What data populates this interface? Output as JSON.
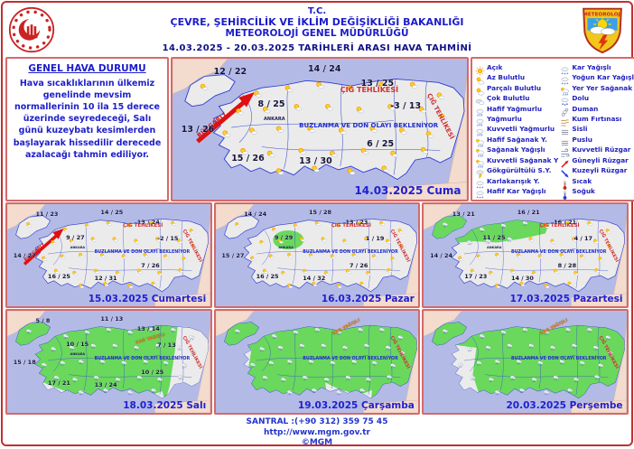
{
  "header": {
    "line1": "T.C.",
    "line2": "ÇEVRE, ŞEHİRCİLİK VE İKLİM DEĞİŞİKLİĞİ BAKANLIĞI",
    "line3": "METEOROLOJİ GENEL MÜDÜRLÜĞÜ",
    "date_range": "14.03.2025 - 20.03.2025   TARİHLERİ ARASI HAVA TAHMİNİ",
    "logo_label": "METEOROLOJİ"
  },
  "overview": {
    "title": "GENEL HAVA DURUMU",
    "text": "Hava sıcaklıklarının  ülkemiz genelinde mevsim normallerinin 10 ila 15 derece üzerinde seyredeceği, Salı günü kuzeybatı kesimlerden başlayarak hissedilir derecede azalacağı tahmin ediliyor."
  },
  "warnings": {
    "frost": "BUZLANMA VE DON OLAYI BEKLENİYOR",
    "avalanche": "ÇIĞ TEHLİKESİ",
    "wind": "RÜZGARLI",
    "snow": "KAR YAĞIŞLI"
  },
  "legend": {
    "col1": [
      {
        "icon": "sun",
        "label": "Açık"
      },
      {
        "icon": "sun-small-cloud",
        "label": "Az Bulutlu"
      },
      {
        "icon": "sun-cloud",
        "label": "Parçalı Bulutlu"
      },
      {
        "icon": "clouds",
        "label": "Çok Bulutlu"
      },
      {
        "icon": "light-rain",
        "label": "Hafif Yağmurlu"
      },
      {
        "icon": "rain",
        "label": "Yağmurlu"
      },
      {
        "icon": "heavy-rain",
        "label": "Kuvvetli Yağmurlu"
      },
      {
        "icon": "light-shower",
        "label": "Hafif Sağanak Y."
      },
      {
        "icon": "shower",
        "label": "Sağanak Yağışlı"
      },
      {
        "icon": "heavy-shower",
        "label": "Kuvvetli Sağanak Y"
      },
      {
        "icon": "thunderstorm",
        "label": "Gökgürültülü S.Y."
      },
      {
        "icon": "sleet",
        "label": "Karlakarışık Y."
      },
      {
        "icon": "light-snow",
        "label": "Hafif Kar Yağışlı"
      }
    ],
    "col2": [
      {
        "icon": "snow",
        "label": "Kar Yağışlı"
      },
      {
        "icon": "heavy-snow",
        "label": "Yoğun Kar Yağışlı"
      },
      {
        "icon": "local-shower",
        "label": "Yer Yer Sağanak Y."
      },
      {
        "icon": "hail",
        "label": "Dolu"
      },
      {
        "icon": "smoke",
        "label": "Duman"
      },
      {
        "icon": "sandstorm",
        "label": "Kum Fırtınası"
      },
      {
        "icon": "fog",
        "label": "Sisli"
      },
      {
        "icon": "haze",
        "label": "Puslu"
      },
      {
        "icon": "strong-wind",
        "label": "Kuvvetli Rüzgar"
      },
      {
        "icon": "south-wind",
        "label": "Güneyli Rüzgar"
      },
      {
        "icon": "north-wind",
        "label": "Kuzeyli Rüzgar"
      },
      {
        "icon": "hot",
        "label": "Sıcak"
      },
      {
        "icon": "cold",
        "label": "Soğuk"
      }
    ]
  },
  "maps": [
    {
      "date_label": "14.03.2025 Cuma",
      "city": "ANKARA",
      "temps": {
        "nw": "12 / 22",
        "n": "14 / 24",
        "ne": "13 / 25",
        "center": "8 / 25",
        "e": "-3 / 13",
        "w": "13 / 26",
        "se": "6 / 25",
        "sw": "15 / 26",
        "s": "13 / 30"
      }
    },
    {
      "date_label": "15.03.2025 Cumartesi",
      "city": "ANKARA",
      "temps": {
        "nw": "11 / 23",
        "n": "14 / 25",
        "ne": "13 / 24",
        "center": "9 / 27",
        "e": "-2 / 15",
        "w": "14 / 27",
        "se": "7 / 26",
        "sw": "16 / 25",
        "s": "12 / 31"
      }
    },
    {
      "date_label": "16.03.2025 Pazar",
      "city": "ANKARA",
      "temps": {
        "nw": "14 / 24",
        "n": "15 / 28",
        "ne": "13 / 23",
        "center": "9 / 29",
        "e": "1 / 19",
        "w": "15 / 27",
        "se": "7 / 26",
        "sw": "16 / 25",
        "s": "14 / 32"
      }
    },
    {
      "date_label": "17.03.2025 Pazartesi",
      "city": "ANKARA",
      "temps": {
        "nw": "13 / 21",
        "n": "16 / 21",
        "ne": "16 / 21",
        "center": "11 / 25",
        "e": "4 / 17",
        "w": "14 / 24",
        "se": "8 / 28",
        "sw": "17 / 23",
        "s": "14 / 30"
      }
    },
    {
      "date_label": "18.03.2025 Salı",
      "city": "ANKARA",
      "temps": {
        "nw": "5 / 8",
        "n": "11 / 13",
        "ne": "13 / 14",
        "center": "10 / 15",
        "e": "7 / 13",
        "w": "15 / 18",
        "se": "10 / 25",
        "sw": "17 / 21",
        "s": "13 / 24"
      }
    },
    {
      "date_label": "19.03.2025 Çarşamba",
      "temps": {}
    },
    {
      "date_label": "20.03.2025 Perşembe",
      "temps": {}
    }
  ],
  "footer": {
    "phone": "SANTRAL :(+90 312) 359 75 45",
    "website": "http://www.mgm.gov.tr",
    "copyright": "©MGM"
  }
}
